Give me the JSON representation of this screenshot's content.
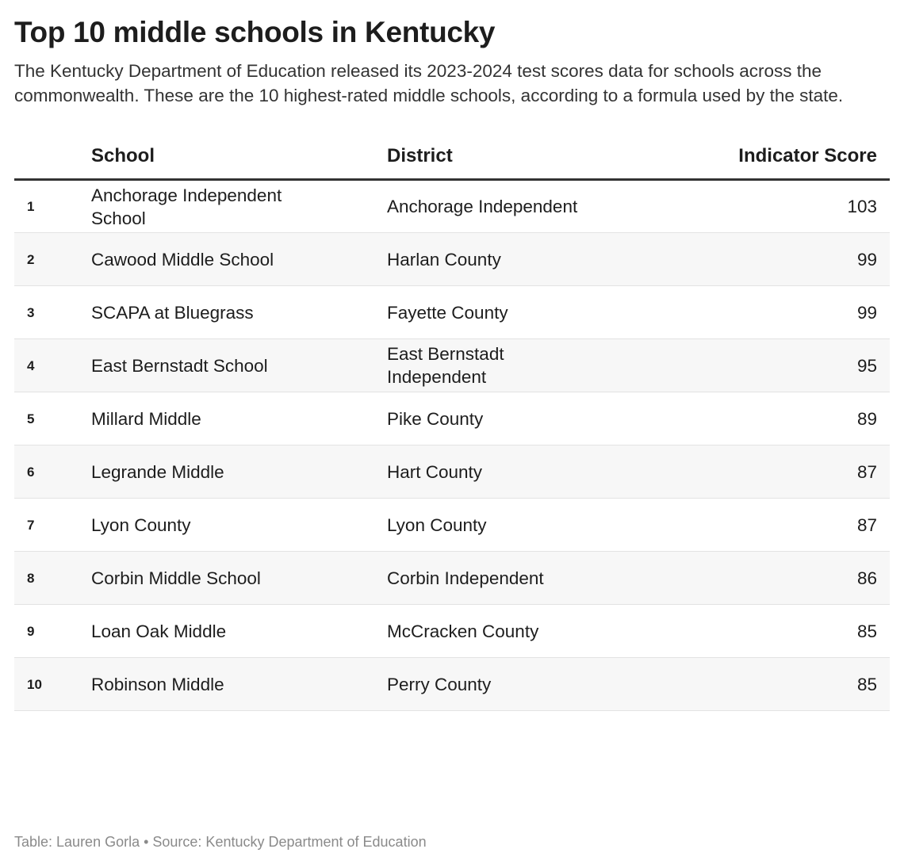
{
  "title": "Top 10 middle schools in Kentucky",
  "description": "The Kentucky Department of Education released its 2023-2024 test scores data for schools across the commonwealth. These are the 10 highest-rated middle schools, according to a formula used by the state.",
  "table": {
    "headers": {
      "rank": "",
      "school": "School",
      "district": "District",
      "score": "Indicator Score"
    },
    "rows": [
      {
        "rank": "1",
        "school": "Anchorage Independent School",
        "district": "Anchorage Independent",
        "score": "103"
      },
      {
        "rank": "2",
        "school": "Cawood Middle School",
        "district": "Harlan County",
        "score": "99"
      },
      {
        "rank": "3",
        "school": "SCAPA at Bluegrass",
        "district": "Fayette County",
        "score": "99"
      },
      {
        "rank": "4",
        "school": "East Bernstadt School",
        "district": "East Bernstadt Independent",
        "score": "95"
      },
      {
        "rank": "5",
        "school": "Millard Middle",
        "district": "Pike County",
        "score": "89"
      },
      {
        "rank": "6",
        "school": "Legrande Middle",
        "district": "Hart County",
        "score": "87"
      },
      {
        "rank": "7",
        "school": "Lyon County",
        "district": "Lyon County",
        "score": "87"
      },
      {
        "rank": "8",
        "school": "Corbin Middle School",
        "district": "Corbin Independent",
        "score": "86"
      },
      {
        "rank": "9",
        "school": "Loan Oak Middle",
        "district": "McCracken County",
        "score": "85"
      },
      {
        "rank": "10",
        "school": "Robinson Middle",
        "district": "Perry County",
        "score": "85"
      }
    ]
  },
  "footer": "Table: Lauren Gorla • Source: Kentucky Department of Education"
}
